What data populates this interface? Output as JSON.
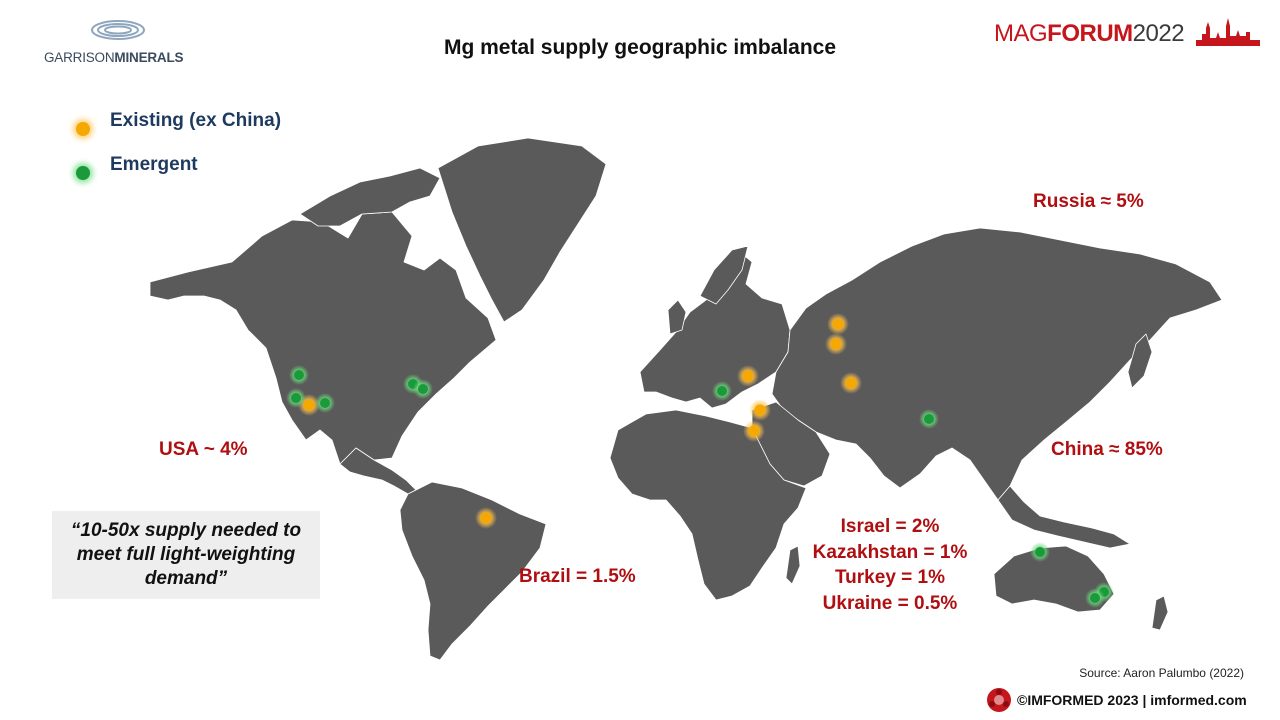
{
  "slide": {
    "title": "Mg metal supply geographic imbalance"
  },
  "logos": {
    "left_brand_prefix": "GARRISON",
    "left_brand_suffix": "MINERALS",
    "right_mag": "MAG",
    "right_forum": "FORUM",
    "right_year": "2022"
  },
  "legend": {
    "items": [
      {
        "label": "Existing (ex China)",
        "color": "#f5a800"
      },
      {
        "label": "Emergent",
        "color": "#22b34a"
      }
    ]
  },
  "map": {
    "land_color": "#5a5a5a",
    "border_color": "#ffffff"
  },
  "shares": {
    "usa": "USA ~ 4%",
    "russia": "Russia ≈ 5%",
    "china": "China ≈ 85%",
    "brazil": "Brazil = 1.5%",
    "israel": "Israel = 2%",
    "kazakhstan": "Kazakhstan = 1%",
    "turkey": "Turkey = 1%",
    "ukraine": "Ukraine = 0.5%"
  },
  "quote": "“10-50x supply needed to meet full light-weighting demand”",
  "source": "Source: Aaron Palumbo (2022)",
  "footer": "©IMFORMED 2023  | imformed.com"
}
